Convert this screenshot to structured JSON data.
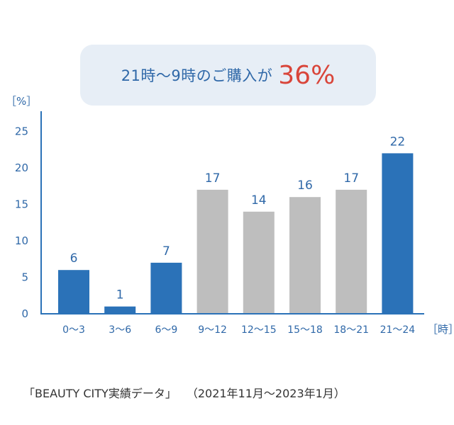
{
  "banner": {
    "text": "21時〜9時のご購入が",
    "highlight": "36%"
  },
  "source": {
    "label": "「BEAUTY CITY実績データ」",
    "period": "（2021年11月〜2023年1月）"
  },
  "colors": {
    "highlight_bar": "#2b72b8",
    "normal_bar": "#bebebe",
    "axis": "#2b72b8",
    "banner_bg": "#e7eef6",
    "accent_red": "#d9453a"
  },
  "chart_data": {
    "type": "bar",
    "categories": [
      "0〜3",
      "3〜6",
      "6〜9",
      "9〜12",
      "12〜15",
      "15〜18",
      "18〜21",
      "21〜24"
    ],
    "values": [
      6,
      1,
      7,
      17,
      14,
      16,
      17,
      22
    ],
    "highlighted": [
      true,
      true,
      true,
      false,
      false,
      false,
      false,
      true
    ],
    "ylabel": "［%］",
    "xlabel": "［時］",
    "ylim": [
      0,
      28
    ],
    "yticks": [
      0,
      5,
      10,
      15,
      20,
      25
    ],
    "grid": false
  }
}
